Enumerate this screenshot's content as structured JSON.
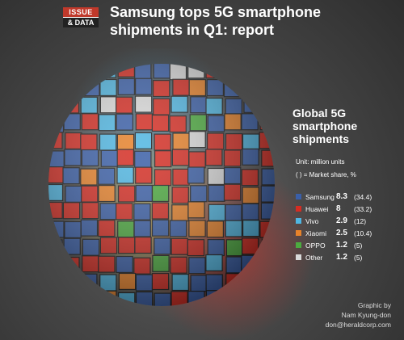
{
  "badge": {
    "line1": "ISSUE",
    "line2": "& DATA"
  },
  "title": {
    "line1": "Samsung tops 5G smartphone",
    "line2": "shipments in Q1: report"
  },
  "subtitle": {
    "line1": "Global 5G",
    "line2": "smartphone",
    "line3": "shipments"
  },
  "unit_note": "Unit: million units",
  "share_note": "( ) = Market share, %",
  "credit": {
    "line1": "Graphic by",
    "line2": "Nam Kyung-don",
    "line3": "don@heraldcorp.com"
  },
  "colors": {
    "samsung": "#3a5fa8",
    "huawei": "#d62c22",
    "vivo": "#4fb6e2",
    "xiaomi": "#e8822a",
    "oppo": "#4cab3f",
    "other": "#d9d9d9"
  },
  "chart_data": {
    "type": "table",
    "title": "Global 5G smartphone shipments",
    "unit": "million units",
    "categories": [
      "Samsung",
      "Huawei",
      "Vivo",
      "Xiaomi",
      "OPPO",
      "Other"
    ],
    "values": [
      8.3,
      8,
      2.9,
      2.5,
      1.2,
      1.2
    ],
    "value_labels": [
      "8.3",
      "8",
      "2.9",
      "2.5",
      "1.2",
      "1.2"
    ],
    "share_labels": [
      "(34.4)",
      "(33.2)",
      "(12)",
      "(10.4)",
      "(5)",
      "(5)"
    ],
    "market_share": [
      34.4,
      33.2,
      12,
      10.4,
      5,
      5
    ],
    "colors": [
      "#3a5fa8",
      "#d62c22",
      "#4fb6e2",
      "#e8822a",
      "#4cab3f",
      "#d9d9d9"
    ],
    "legend_position": "right"
  }
}
